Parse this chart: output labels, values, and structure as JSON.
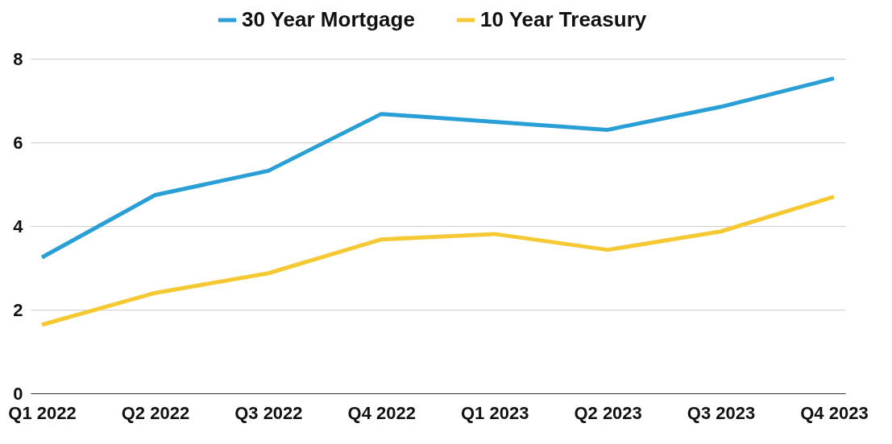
{
  "chart_data": {
    "type": "line",
    "categories": [
      "Q1 2022",
      "Q2 2022",
      "Q3 2022",
      "Q4 2022",
      "Q1 2023",
      "Q2 2023",
      "Q3 2023",
      "Q4 2023"
    ],
    "series": [
      {
        "name": "30 Year Mortgage",
        "color": "#2a9fd6",
        "values": [
          3.25,
          4.74,
          5.32,
          6.68,
          6.49,
          6.3,
          6.85,
          7.53
        ]
      },
      {
        "name": "10 Year Treasury",
        "color": "#f5c933",
        "values": [
          1.64,
          2.4,
          2.87,
          3.68,
          3.81,
          3.43,
          3.87,
          4.7
        ]
      }
    ],
    "ylim": [
      0,
      8
    ],
    "yticks": [
      0,
      2,
      4,
      6,
      8
    ],
    "grid": "y",
    "legend": "top",
    "marker": "none",
    "line_style": "solid"
  }
}
